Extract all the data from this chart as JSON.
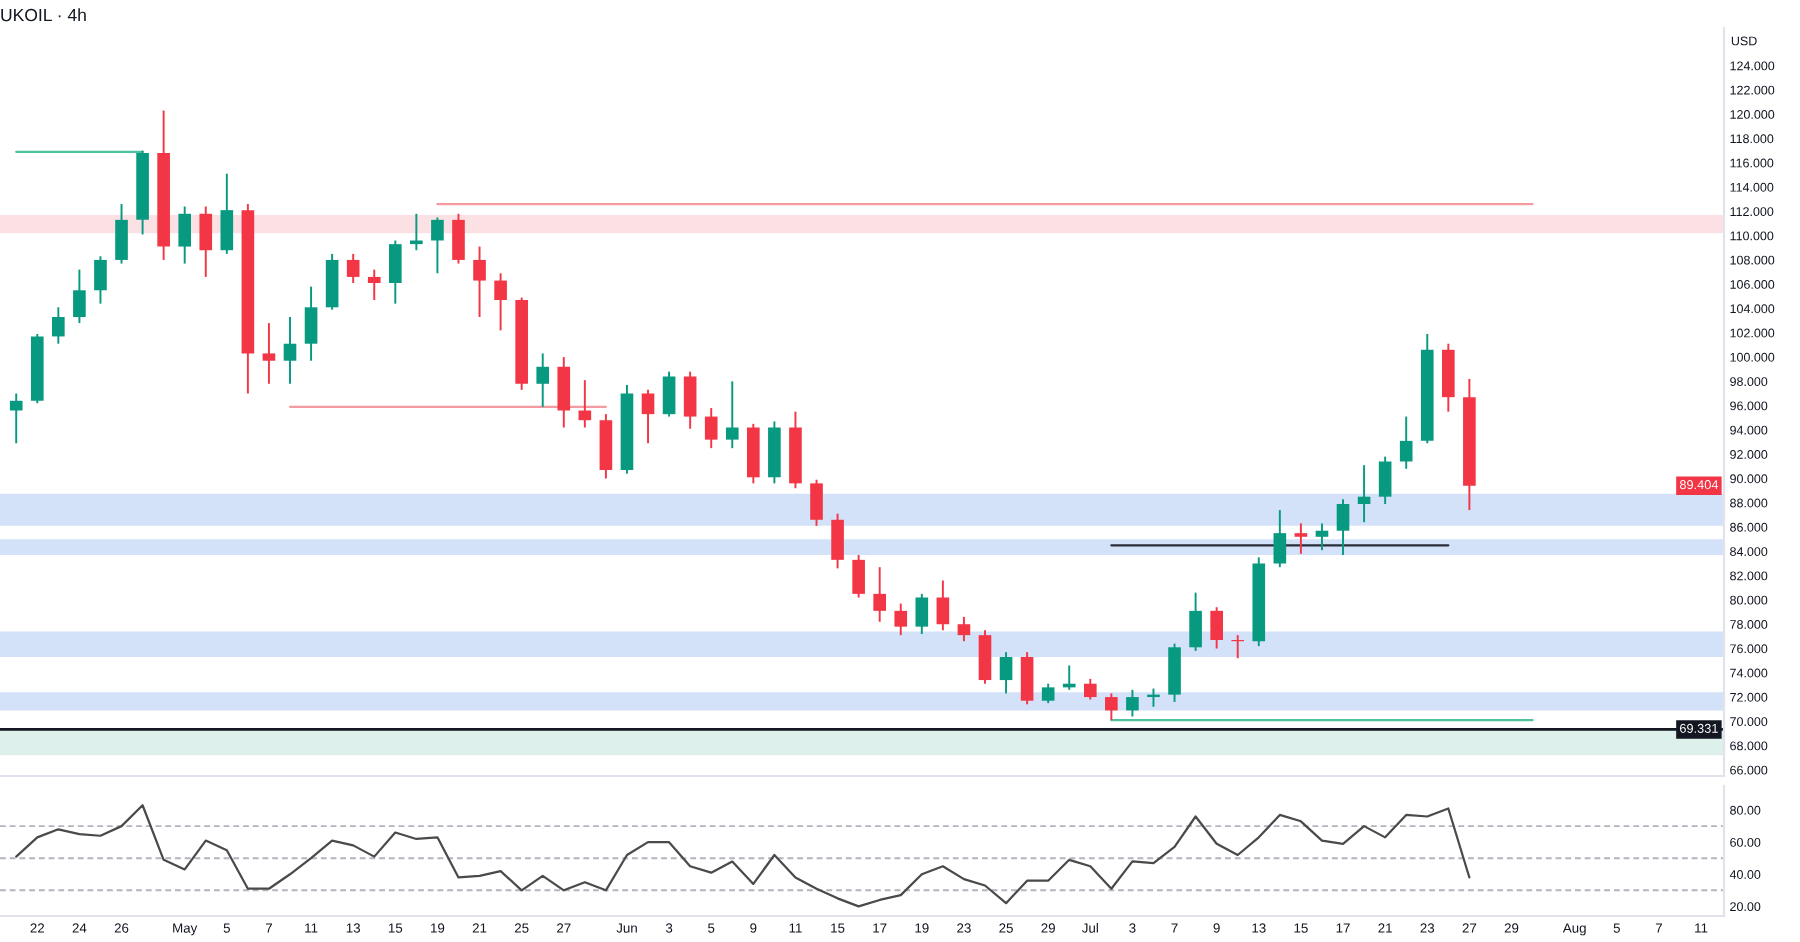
{
  "chart_data": [
    {
      "type": "candlestick",
      "title": "UKOIL · 4h",
      "ylabel": "USD",
      "tick_labels": "y",
      "categories": [
        null,
        null,
        null,
        null,
        null,
        null,
        null,
        null,
        null,
        null,
        null,
        null,
        null,
        null,
        null,
        null,
        null,
        null,
        null,
        null,
        null,
        null,
        null,
        null,
        null,
        null,
        null,
        null,
        null,
        null,
        null,
        null,
        null,
        null,
        null,
        null,
        null,
        null,
        null,
        null,
        null,
        null,
        null,
        null,
        null,
        null,
        null,
        null,
        null,
        null,
        null,
        null,
        null,
        null,
        null,
        null,
        null,
        null,
        null,
        null,
        null,
        null,
        null,
        null,
        null,
        null,
        null,
        null,
        null,
        null,
        null,
        null,
        null,
        null,
        null,
        null,
        null,
        null,
        null,
        null,
        null,
        null
      ],
      "ohlc": [
        [
          95.6,
          97.0,
          92.9,
          96.4
        ],
        [
          96.4,
          101.9,
          96.2,
          101.7
        ],
        [
          101.7,
          104.1,
          101.1,
          103.3
        ],
        [
          103.3,
          107.2,
          102.8,
          105.5
        ],
        [
          105.5,
          108.3,
          104.4,
          108.0
        ],
        [
          108.0,
          112.6,
          107.7,
          111.3
        ],
        [
          111.3,
          117.0,
          110.1,
          116.8
        ],
        [
          116.8,
          120.3,
          108.0,
          109.1
        ],
        [
          109.1,
          112.4,
          107.7,
          111.8
        ],
        [
          111.8,
          112.4,
          106.6,
          108.8
        ],
        [
          108.8,
          115.1,
          108.5,
          112.1
        ],
        [
          112.1,
          112.6,
          97.0,
          100.3
        ],
        [
          100.3,
          102.8,
          97.8,
          99.7
        ],
        [
          99.7,
          103.3,
          97.8,
          101.1
        ],
        [
          101.1,
          105.8,
          99.7,
          104.1
        ],
        [
          104.1,
          108.5,
          103.9,
          108.0
        ],
        [
          108.0,
          108.5,
          106.1,
          106.6
        ],
        [
          106.6,
          107.2,
          104.7,
          106.1
        ],
        [
          106.1,
          109.6,
          104.4,
          109.3
        ],
        [
          109.3,
          111.8,
          108.8,
          109.6
        ],
        [
          109.6,
          111.5,
          106.9,
          111.3
        ],
        [
          111.3,
          111.8,
          107.7,
          108.0
        ],
        [
          108.0,
          109.1,
          103.3,
          106.3
        ],
        [
          106.3,
          106.9,
          102.2,
          104.7
        ],
        [
          104.7,
          104.9,
          97.3,
          97.8
        ],
        [
          97.8,
          100.3,
          95.9,
          99.2
        ],
        [
          99.2,
          100.0,
          94.2,
          95.6
        ],
        [
          95.6,
          98.1,
          94.2,
          94.8
        ],
        [
          94.8,
          95.3,
          90.0,
          90.7
        ],
        [
          90.7,
          97.7,
          90.4,
          97.0
        ],
        [
          97.0,
          97.3,
          92.9,
          95.3
        ],
        [
          95.3,
          98.8,
          95.1,
          98.4
        ],
        [
          98.4,
          98.8,
          94.1,
          95.1
        ],
        [
          95.1,
          95.8,
          92.5,
          93.2
        ],
        [
          93.2,
          98.0,
          92.5,
          94.2
        ],
        [
          94.2,
          94.5,
          89.6,
          90.1
        ],
        [
          90.1,
          94.7,
          89.6,
          94.2
        ],
        [
          94.2,
          95.5,
          89.2,
          89.6
        ],
        [
          89.6,
          89.9,
          86.1,
          86.6
        ],
        [
          86.6,
          87.1,
          82.6,
          83.3
        ],
        [
          83.3,
          83.7,
          80.2,
          80.5
        ],
        [
          80.5,
          82.7,
          78.2,
          79.1
        ],
        [
          79.1,
          79.7,
          77.1,
          77.8
        ],
        [
          77.8,
          80.5,
          77.2,
          80.2
        ],
        [
          80.2,
          81.6,
          77.5,
          78.0
        ],
        [
          78.0,
          78.6,
          76.6,
          77.1
        ],
        [
          77.1,
          77.5,
          73.1,
          73.4
        ],
        [
          73.4,
          75.7,
          72.3,
          75.3
        ],
        [
          75.3,
          75.7,
          71.4,
          71.7
        ],
        [
          71.7,
          73.1,
          71.5,
          72.8
        ],
        [
          72.8,
          74.6,
          72.6,
          73.1
        ],
        [
          73.1,
          73.5,
          71.8,
          72.0
        ],
        [
          72.0,
          72.3,
          70.1,
          70.9
        ],
        [
          70.9,
          72.6,
          70.4,
          72.0
        ],
        [
          72.0,
          72.7,
          71.2,
          72.2
        ],
        [
          72.2,
          76.4,
          71.6,
          76.1
        ],
        [
          76.1,
          80.6,
          75.8,
          79.1
        ],
        [
          79.1,
          79.4,
          76.0,
          76.7
        ],
        [
          76.7,
          77.1,
          75.2,
          76.6
        ],
        [
          76.6,
          83.5,
          76.2,
          83.0
        ],
        [
          83.0,
          87.4,
          82.7,
          85.5
        ],
        [
          85.5,
          86.3,
          83.8,
          85.2
        ],
        [
          85.2,
          86.3,
          84.1,
          85.7
        ],
        [
          85.7,
          88.3,
          83.7,
          87.9
        ],
        [
          87.9,
          91.1,
          86.4,
          88.5
        ],
        [
          88.5,
          91.8,
          87.9,
          91.4
        ],
        [
          91.4,
          95.1,
          90.8,
          93.1
        ],
        [
          93.1,
          101.9,
          92.9,
          100.6
        ],
        [
          100.6,
          101.1,
          95.5,
          96.7
        ],
        [
          96.7,
          98.2,
          87.4,
          89.404
        ],
        null,
        null,
        null,
        null,
        null,
        null,
        null,
        null,
        null,
        null,
        null,
        null
      ],
      "colors": [
        "#089981",
        "#089981",
        "#089981",
        "#089981",
        "#089981",
        "#089981",
        "#089981",
        "#f23645",
        "#089981",
        "#f23645",
        "#089981",
        "#f23645",
        "#f23645",
        "#089981",
        "#089981",
        "#089981",
        "#f23645",
        "#f23645",
        "#089981",
        "#089981",
        "#089981",
        "#f23645",
        "#f23645",
        "#f23645",
        "#f23645",
        "#089981",
        "#f23645",
        "#f23645",
        "#f23645",
        "#089981",
        "#f23645",
        "#089981",
        "#f23645",
        "#f23645",
        "#089981",
        "#f23645",
        "#089981",
        "#f23645",
        "#f23645",
        "#f23645",
        "#f23645",
        "#f23645",
        "#f23645",
        "#089981",
        "#f23645",
        "#f23645",
        "#f23645",
        "#089981",
        "#f23645",
        "#089981",
        "#089981",
        "#f23645",
        "#f23645",
        "#089981",
        "#089981",
        "#089981",
        "#089981",
        "#f23645",
        "#f23645",
        "#089981",
        "#089981",
        "#f23645",
        "#089981",
        "#089981",
        "#089981",
        "#089981",
        "#089981",
        "#089981",
        "#f23645",
        "#f23645",
        null,
        null,
        null,
        null,
        null,
        null,
        null,
        null,
        null,
        null,
        null,
        null
      ],
      "series": [
        {
          "type": "line",
          "color": "#4fc3a1",
          "values": [
            116.9,
            116.9,
            116.9,
            116.9,
            116.9,
            116.9,
            116.9,
            null,
            null,
            null,
            null,
            null,
            null,
            null,
            null,
            null,
            null,
            null,
            null,
            null,
            null,
            null,
            null,
            null,
            null,
            null,
            null,
            null,
            null,
            null,
            null,
            null,
            null,
            null,
            null,
            null,
            null,
            null,
            null,
            null,
            null,
            null,
            null,
            null,
            null,
            null,
            null,
            null,
            null,
            null,
            null,
            null,
            null,
            null,
            null,
            null,
            null,
            null,
            null,
            null,
            null,
            null,
            null,
            null,
            null,
            null,
            null,
            null,
            null,
            null,
            null,
            null,
            null,
            null,
            null,
            null,
            null,
            null,
            null,
            null,
            null,
            null
          ]
        },
        {
          "type": "line",
          "color": "#f59aa1",
          "values": [
            null,
            null,
            null,
            null,
            null,
            null,
            null,
            null,
            null,
            null,
            null,
            null,
            null,
            null,
            null,
            null,
            null,
            null,
            null,
            null,
            112.6,
            112.6,
            112.6,
            112.6,
            112.6,
            112.6,
            112.6,
            112.6,
            112.6,
            112.6,
            112.6,
            112.6,
            112.6,
            112.6,
            112.6,
            112.6,
            112.6,
            112.6,
            112.6,
            112.6,
            112.6,
            112.6,
            112.6,
            112.6,
            112.6,
            112.6,
            112.6,
            112.6,
            112.6,
            112.6,
            112.6,
            112.6,
            112.6,
            112.6,
            112.6,
            112.6,
            112.6,
            112.6,
            112.6,
            112.6,
            112.6,
            112.6,
            112.6,
            112.6,
            112.6,
            112.6,
            112.6,
            112.6,
            112.6,
            112.6,
            112.6,
            112.6,
            112.6,
            null,
            null,
            null,
            null,
            null,
            null,
            null,
            null,
            null
          ]
        },
        {
          "type": "line",
          "color": "#f59aa1",
          "values": [
            null,
            null,
            null,
            null,
            null,
            null,
            null,
            null,
            null,
            null,
            null,
            null,
            null,
            95.9,
            95.9,
            95.9,
            95.9,
            95.9,
            95.9,
            95.9,
            95.9,
            95.9,
            95.9,
            95.9,
            95.9,
            95.9,
            95.9,
            95.9,
            95.9,
            null,
            null,
            null,
            null,
            null,
            null,
            null,
            null,
            null,
            null,
            null,
            null,
            null,
            null,
            null,
            null,
            null,
            null,
            null,
            null,
            null,
            null,
            null,
            null,
            null,
            null,
            null,
            null,
            null,
            null,
            null,
            null,
            null,
            null,
            null,
            null,
            null,
            null,
            null,
            null,
            null,
            null,
            null,
            null,
            null,
            null,
            null,
            null,
            null,
            null,
            null,
            null,
            null
          ]
        },
        {
          "type": "line",
          "color": "#2a2e39",
          "values": [
            null,
            null,
            null,
            null,
            null,
            null,
            null,
            null,
            null,
            null,
            null,
            null,
            null,
            null,
            null,
            null,
            null,
            null,
            null,
            null,
            null,
            null,
            null,
            null,
            null,
            null,
            null,
            null,
            null,
            null,
            null,
            null,
            null,
            null,
            null,
            null,
            null,
            null,
            null,
            null,
            null,
            null,
            null,
            null,
            null,
            null,
            null,
            null,
            null,
            null,
            null,
            null,
            84.5,
            84.5,
            84.5,
            84.5,
            84.5,
            84.5,
            84.5,
            84.5,
            84.5,
            84.5,
            84.5,
            84.5,
            84.5,
            84.5,
            84.5,
            84.5,
            84.5,
            null,
            null,
            null,
            null,
            null,
            null,
            null,
            null,
            null,
            null,
            null,
            null,
            null
          ]
        },
        {
          "type": "line",
          "color": "#4fc3a1",
          "values": [
            null,
            null,
            null,
            null,
            null,
            null,
            null,
            null,
            null,
            null,
            null,
            null,
            null,
            null,
            null,
            null,
            null,
            null,
            null,
            null,
            null,
            null,
            null,
            null,
            null,
            null,
            null,
            null,
            null,
            null,
            null,
            null,
            null,
            null,
            null,
            null,
            null,
            null,
            null,
            null,
            null,
            null,
            null,
            null,
            null,
            null,
            null,
            null,
            null,
            null,
            null,
            null,
            70.1,
            70.1,
            70.1,
            70.1,
            70.1,
            70.1,
            70.1,
            70.1,
            70.1,
            70.1,
            70.1,
            70.1,
            70.1,
            70.1,
            70.1,
            70.1,
            70.1,
            70.1,
            70.1,
            70.1,
            70.1,
            null,
            null,
            null,
            null,
            null,
            null,
            null,
            null,
            null
          ]
        }
      ],
      "bands": [
        {
          "axis": "y",
          "from": 110.2,
          "to": 111.7,
          "color": "#fce1e4"
        },
        {
          "axis": "y",
          "from": 86.1,
          "to": 88.75,
          "color": "#d3e2f9"
        },
        {
          "axis": "y",
          "from": 83.7,
          "to": 85.0,
          "color": "#d3e2f9"
        },
        {
          "axis": "y",
          "from": 75.3,
          "to": 77.4,
          "color": "#d3e2f9"
        },
        {
          "axis": "y",
          "from": 70.9,
          "to": 72.4,
          "color": "#d3e2f9"
        },
        {
          "axis": "y",
          "from": 67.2,
          "to": 69.331,
          "color": "#ddf0ec"
        }
      ],
      "ref_lines": [
        {
          "axis": "y",
          "value": 69.331,
          "label": "69.331",
          "color": "#131722"
        }
      ],
      "annotations": [
        {
          "text": "89.404",
          "y": 89.404
        }
      ],
      "ylim": [
        65.5,
        127.1
      ],
      "yticks": [
        {
          "value": 66,
          "label": "66.000"
        },
        {
          "value": 68,
          "label": "68.000"
        },
        {
          "value": 70,
          "label": "70.000"
        },
        {
          "value": 72,
          "label": "72.000"
        },
        {
          "value": 74,
          "label": "74.000"
        },
        {
          "value": 76,
          "label": "76.000"
        },
        {
          "value": 78,
          "label": "78.000"
        },
        {
          "value": 80,
          "label": "80.000"
        },
        {
          "value": 82,
          "label": "82.000"
        },
        {
          "value": 84,
          "label": "84.000"
        },
        {
          "value": 86,
          "label": "86.000"
        },
        {
          "value": 88,
          "label": "88.000"
        },
        {
          "value": 90,
          "label": "90.000"
        },
        {
          "value": 92,
          "label": "92.000"
        },
        {
          "value": 94,
          "label": "94.000"
        },
        {
          "value": 96,
          "label": "96.000"
        },
        {
          "value": 98,
          "label": "98.000"
        },
        {
          "value": 100,
          "label": "100.000"
        },
        {
          "value": 102,
          "label": "102.000"
        },
        {
          "value": 104,
          "label": "104.000"
        },
        {
          "value": 106,
          "label": "106.000"
        },
        {
          "value": 108,
          "label": "108.000"
        },
        {
          "value": 110,
          "label": "110.000"
        },
        {
          "value": 112,
          "label": "112.000"
        },
        {
          "value": 114,
          "label": "114.000"
        },
        {
          "value": 116,
          "label": "116.000"
        },
        {
          "value": 118,
          "label": "118.000"
        },
        {
          "value": 120,
          "label": "120.000"
        },
        {
          "value": 122,
          "label": "122.000"
        },
        {
          "value": 124,
          "label": "124.000"
        }
      ]
    },
    {
      "type": "line",
      "categories": [
        null,
        "22",
        null,
        "24",
        null,
        "26",
        null,
        null,
        "May",
        null,
        "5",
        null,
        "7",
        null,
        "11",
        null,
        "13",
        null,
        "15",
        null,
        "19",
        null,
        "21",
        null,
        "25",
        null,
        "27",
        null,
        null,
        "Jun",
        null,
        "3",
        null,
        "5",
        null,
        "9",
        null,
        "11",
        null,
        "15",
        null,
        "17",
        null,
        "19",
        null,
        "23",
        null,
        "25",
        null,
        "29",
        null,
        "Jul",
        null,
        "3",
        null,
        "7",
        null,
        "9",
        null,
        "13",
        null,
        "15",
        null,
        "17",
        null,
        "21",
        null,
        "23",
        null,
        "27",
        null,
        "29",
        null,
        null,
        "Aug",
        null,
        "5",
        null,
        "7",
        null,
        "11",
        null
      ],
      "series": [
        {
          "color": "#4a4a4a",
          "values": [
            51,
            63,
            68,
            65,
            64,
            70,
            83,
            49,
            43,
            61,
            55,
            31,
            31,
            40,
            50,
            61,
            58,
            51,
            66,
            62,
            63,
            38,
            39,
            42,
            30,
            39,
            30,
            35,
            30,
            52,
            60,
            60,
            45,
            41,
            48,
            34,
            52,
            38,
            31,
            25,
            20,
            24,
            27,
            40,
            45,
            37,
            33,
            22,
            36,
            36,
            49,
            45,
            31,
            48,
            47,
            57,
            76,
            59,
            52,
            63,
            77,
            73,
            61,
            59,
            70,
            63,
            77,
            76,
            81,
            38,
            null,
            null,
            null,
            null,
            null,
            null,
            null,
            null,
            null,
            null,
            null,
            null
          ]
        }
      ],
      "ref_lines": [
        {
          "axis": "y",
          "value": 70,
          "color": "#b2b5be",
          "line_style": "dashed"
        },
        {
          "axis": "y",
          "value": 50,
          "color": "#b2b5be",
          "line_style": "dashed"
        },
        {
          "axis": "y",
          "value": 30,
          "color": "#b2b5be",
          "line_style": "dashed"
        }
      ],
      "ylim": [
        14,
        95
      ],
      "yticks": [
        {
          "value": 20,
          "label": "20.00"
        },
        {
          "value": 40,
          "label": "40.00"
        },
        {
          "value": 60,
          "label": "60.00"
        },
        {
          "value": 80,
          "label": "80.00"
        }
      ]
    }
  ]
}
